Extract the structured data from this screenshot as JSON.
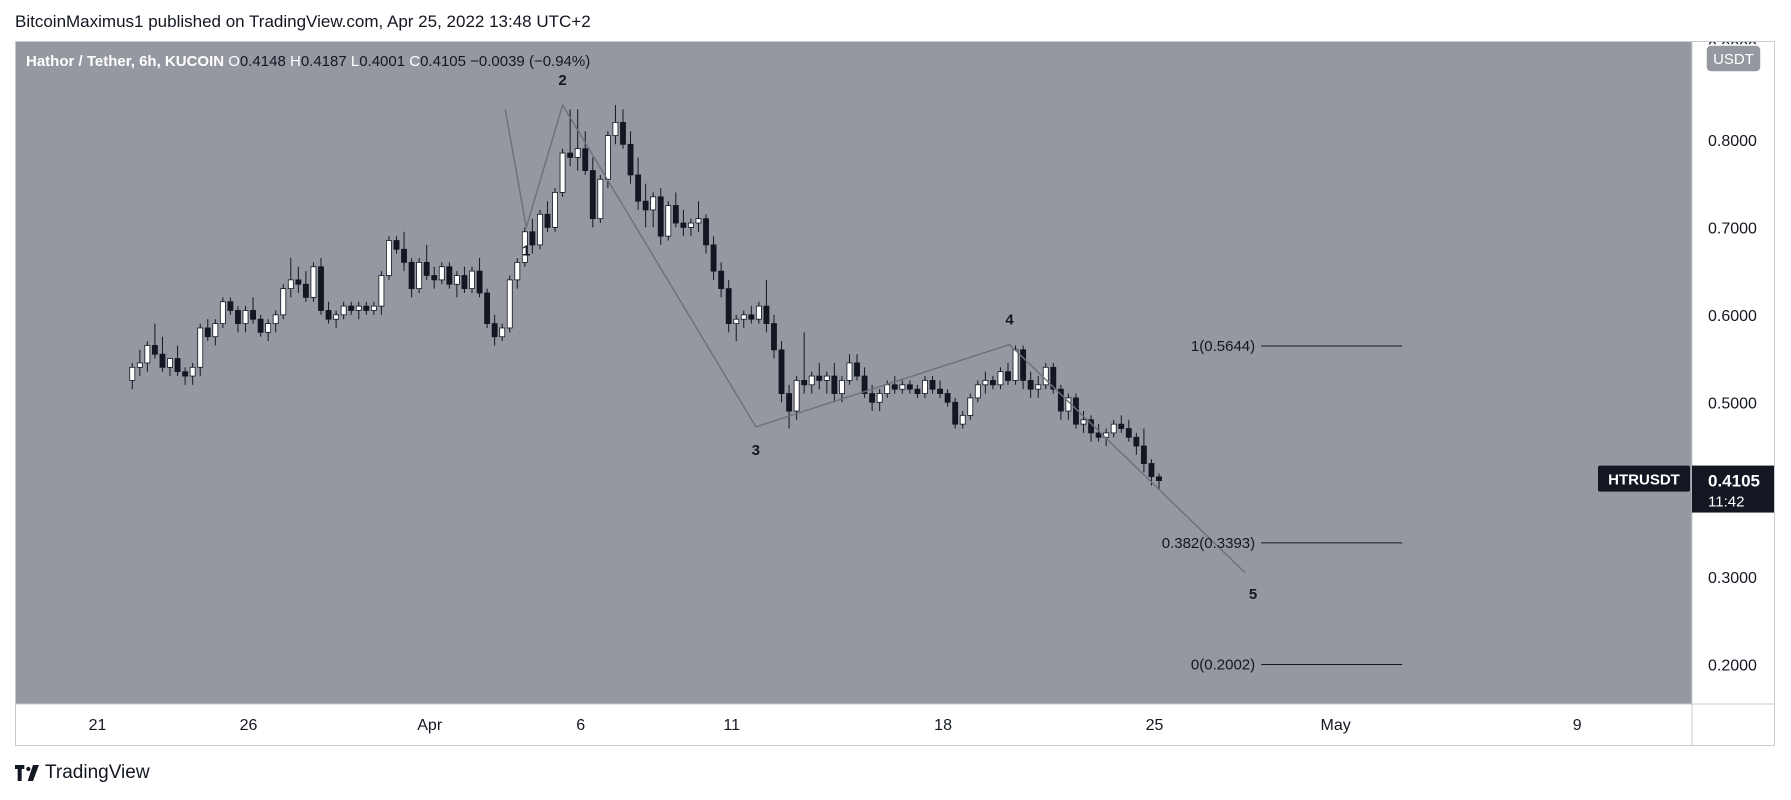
{
  "header": {
    "publisher": "BitcoinMaximus1 published on TradingView.com, Apr 25, 2022 13:48 UTC+2"
  },
  "footer": {
    "brand": "TradingView",
    "logo_icon": "tradingview-logo-icon"
  },
  "colors": {
    "plot_bg": "#9598a1",
    "bull": "#ffffff",
    "bear": "#131722",
    "wick": "#131722",
    "wave_line": "#6d707a",
    "fib_line": "#131722",
    "text": "#131722",
    "label_bg": "#131722",
    "label_text": "#ffffff"
  },
  "chart_data": {
    "type": "candlestick",
    "title": "Hathor / Tether, 6h, KUCOIN",
    "ohlc_summary": [
      {
        "key": "O",
        "value": "0.4148"
      },
      {
        "key": "H",
        "value": "0.4187"
      },
      {
        "key": "L",
        "value": "0.4001"
      },
      {
        "key": "C",
        "value": "0.4105"
      }
    ],
    "change_text": "−0.0039 (−0.94%)",
    "currency_button": "USDT",
    "symbol_label": "HTRUSDT",
    "last_price": "0.4105",
    "countdown": "11:42",
    "x_axis": {
      "range_days": [
        -12.7,
        42.8
      ],
      "ticks": [
        {
          "label": "21",
          "day": -10
        },
        {
          "label": "26",
          "day": -5
        },
        {
          "label": "Apr",
          "day": 1
        },
        {
          "label": "6",
          "day": 6
        },
        {
          "label": "11",
          "day": 11
        },
        {
          "label": "18",
          "day": 18
        },
        {
          "label": "25",
          "day": 25
        },
        {
          "label": "May",
          "day": 31
        },
        {
          "label": "9",
          "day": 39
        }
      ]
    },
    "y_axis": {
      "range": [
        0.155,
        0.912
      ],
      "ticks": [
        "0.8000",
        "0.7000",
        "0.6000",
        "0.5000",
        "0.3000",
        "0.2000"
      ],
      "top_cut_label": "0.9000"
    },
    "candles": [
      [
        0.525,
        0.545,
        0.515,
        0.54
      ],
      [
        0.54,
        0.56,
        0.53,
        0.545
      ],
      [
        0.545,
        0.57,
        0.535,
        0.565
      ],
      [
        0.565,
        0.59,
        0.55,
        0.555
      ],
      [
        0.555,
        0.575,
        0.535,
        0.54
      ],
      [
        0.54,
        0.55,
        0.53,
        0.55
      ],
      [
        0.55,
        0.565,
        0.53,
        0.535
      ],
      [
        0.535,
        0.54,
        0.52,
        0.53
      ],
      [
        0.53,
        0.545,
        0.52,
        0.54
      ],
      [
        0.54,
        0.59,
        0.53,
        0.585
      ],
      [
        0.585,
        0.595,
        0.57,
        0.575
      ],
      [
        0.575,
        0.595,
        0.565,
        0.59
      ],
      [
        0.59,
        0.62,
        0.585,
        0.615
      ],
      [
        0.615,
        0.62,
        0.6,
        0.605
      ],
      [
        0.605,
        0.61,
        0.58,
        0.59
      ],
      [
        0.59,
        0.61,
        0.58,
        0.605
      ],
      [
        0.605,
        0.62,
        0.59,
        0.595
      ],
      [
        0.595,
        0.6,
        0.575,
        0.58
      ],
      [
        0.58,
        0.595,
        0.57,
        0.59
      ],
      [
        0.59,
        0.605,
        0.58,
        0.6
      ],
      [
        0.6,
        0.635,
        0.595,
        0.63
      ],
      [
        0.63,
        0.665,
        0.62,
        0.64
      ],
      [
        0.64,
        0.655,
        0.625,
        0.635
      ],
      [
        0.635,
        0.65,
        0.615,
        0.62
      ],
      [
        0.62,
        0.66,
        0.615,
        0.655
      ],
      [
        0.655,
        0.665,
        0.6,
        0.605
      ],
      [
        0.605,
        0.615,
        0.59,
        0.595
      ],
      [
        0.595,
        0.605,
        0.585,
        0.6
      ],
      [
        0.6,
        0.615,
        0.595,
        0.61
      ],
      [
        0.61,
        0.615,
        0.6,
        0.605
      ],
      [
        0.605,
        0.615,
        0.595,
        0.61
      ],
      [
        0.61,
        0.615,
        0.6,
        0.605
      ],
      [
        0.605,
        0.615,
        0.6,
        0.61
      ],
      [
        0.61,
        0.65,
        0.6,
        0.645
      ],
      [
        0.645,
        0.69,
        0.64,
        0.685
      ],
      [
        0.685,
        0.69,
        0.67,
        0.675
      ],
      [
        0.675,
        0.695,
        0.65,
        0.66
      ],
      [
        0.66,
        0.665,
        0.62,
        0.63
      ],
      [
        0.63,
        0.665,
        0.625,
        0.66
      ],
      [
        0.66,
        0.68,
        0.64,
        0.645
      ],
      [
        0.645,
        0.655,
        0.63,
        0.64
      ],
      [
        0.64,
        0.66,
        0.635,
        0.655
      ],
      [
        0.655,
        0.66,
        0.63,
        0.635
      ],
      [
        0.635,
        0.65,
        0.62,
        0.645
      ],
      [
        0.645,
        0.655,
        0.625,
        0.63
      ],
      [
        0.63,
        0.655,
        0.625,
        0.65
      ],
      [
        0.65,
        0.665,
        0.62,
        0.625
      ],
      [
        0.625,
        0.63,
        0.585,
        0.59
      ],
      [
        0.59,
        0.6,
        0.565,
        0.575
      ],
      [
        0.575,
        0.59,
        0.57,
        0.585
      ],
      [
        0.585,
        0.645,
        0.58,
        0.64
      ],
      [
        0.64,
        0.665,
        0.63,
        0.66
      ],
      [
        0.66,
        0.7,
        0.655,
        0.695
      ],
      [
        0.695,
        0.71,
        0.67,
        0.68
      ],
      [
        0.68,
        0.72,
        0.675,
        0.715
      ],
      [
        0.715,
        0.73,
        0.695,
        0.7
      ],
      [
        0.7,
        0.745,
        0.695,
        0.74
      ],
      [
        0.74,
        0.79,
        0.735,
        0.785
      ],
      [
        0.785,
        0.835,
        0.77,
        0.78
      ],
      [
        0.78,
        0.835,
        0.765,
        0.79
      ],
      [
        0.79,
        0.81,
        0.76,
        0.765
      ],
      [
        0.765,
        0.78,
        0.7,
        0.71
      ],
      [
        0.71,
        0.76,
        0.705,
        0.755
      ],
      [
        0.755,
        0.81,
        0.745,
        0.805
      ],
      [
        0.805,
        0.84,
        0.795,
        0.82
      ],
      [
        0.82,
        0.835,
        0.79,
        0.795
      ],
      [
        0.795,
        0.81,
        0.75,
        0.76
      ],
      [
        0.76,
        0.78,
        0.72,
        0.73
      ],
      [
        0.73,
        0.75,
        0.7,
        0.72
      ],
      [
        0.72,
        0.74,
        0.7,
        0.735
      ],
      [
        0.735,
        0.745,
        0.68,
        0.69
      ],
      [
        0.69,
        0.73,
        0.685,
        0.725
      ],
      [
        0.725,
        0.74,
        0.7,
        0.705
      ],
      [
        0.705,
        0.72,
        0.69,
        0.7
      ],
      [
        0.7,
        0.71,
        0.69,
        0.705
      ],
      [
        0.705,
        0.73,
        0.695,
        0.71
      ],
      [
        0.71,
        0.715,
        0.67,
        0.68
      ],
      [
        0.68,
        0.69,
        0.64,
        0.65
      ],
      [
        0.65,
        0.66,
        0.62,
        0.63
      ],
      [
        0.63,
        0.64,
        0.58,
        0.59
      ],
      [
        0.59,
        0.6,
        0.57,
        0.595
      ],
      [
        0.595,
        0.605,
        0.585,
        0.6
      ],
      [
        0.6,
        0.61,
        0.59,
        0.595
      ],
      [
        0.595,
        0.615,
        0.59,
        0.61
      ],
      [
        0.61,
        0.64,
        0.58,
        0.59
      ],
      [
        0.59,
        0.6,
        0.55,
        0.56
      ],
      [
        0.56,
        0.57,
        0.5,
        0.51
      ],
      [
        0.51,
        0.52,
        0.47,
        0.49
      ],
      [
        0.49,
        0.53,
        0.48,
        0.525
      ],
      [
        0.525,
        0.58,
        0.51,
        0.52
      ],
      [
        0.52,
        0.535,
        0.51,
        0.53
      ],
      [
        0.53,
        0.545,
        0.515,
        0.525
      ],
      [
        0.525,
        0.535,
        0.51,
        0.53
      ],
      [
        0.53,
        0.545,
        0.5,
        0.51
      ],
      [
        0.51,
        0.53,
        0.5,
        0.525
      ],
      [
        0.525,
        0.555,
        0.52,
        0.545
      ],
      [
        0.545,
        0.555,
        0.525,
        0.53
      ],
      [
        0.53,
        0.54,
        0.505,
        0.51
      ],
      [
        0.51,
        0.52,
        0.49,
        0.5
      ],
      [
        0.5,
        0.515,
        0.49,
        0.51
      ],
      [
        0.51,
        0.525,
        0.505,
        0.52
      ],
      [
        0.52,
        0.53,
        0.51,
        0.515
      ],
      [
        0.515,
        0.525,
        0.51,
        0.52
      ],
      [
        0.52,
        0.525,
        0.51,
        0.515
      ],
      [
        0.515,
        0.52,
        0.505,
        0.51
      ],
      [
        0.51,
        0.53,
        0.505,
        0.525
      ],
      [
        0.525,
        0.53,
        0.51,
        0.515
      ],
      [
        0.515,
        0.525,
        0.505,
        0.51
      ],
      [
        0.51,
        0.515,
        0.495,
        0.5
      ],
      [
        0.5,
        0.505,
        0.47,
        0.475
      ],
      [
        0.475,
        0.49,
        0.47,
        0.485
      ],
      [
        0.485,
        0.51,
        0.48,
        0.505
      ],
      [
        0.505,
        0.525,
        0.5,
        0.52
      ],
      [
        0.52,
        0.535,
        0.51,
        0.525
      ],
      [
        0.525,
        0.53,
        0.515,
        0.52
      ],
      [
        0.52,
        0.54,
        0.515,
        0.535
      ],
      [
        0.535,
        0.545,
        0.52,
        0.525
      ],
      [
        0.525,
        0.565,
        0.52,
        0.56
      ],
      [
        0.56,
        0.565,
        0.515,
        0.525
      ],
      [
        0.525,
        0.535,
        0.505,
        0.515
      ],
      [
        0.515,
        0.53,
        0.505,
        0.52
      ],
      [
        0.52,
        0.545,
        0.515,
        0.54
      ],
      [
        0.54,
        0.545,
        0.51,
        0.515
      ],
      [
        0.515,
        0.52,
        0.48,
        0.49
      ],
      [
        0.49,
        0.51,
        0.48,
        0.505
      ],
      [
        0.505,
        0.51,
        0.47,
        0.475
      ],
      [
        0.475,
        0.49,
        0.465,
        0.48
      ],
      [
        0.48,
        0.485,
        0.455,
        0.465
      ],
      [
        0.465,
        0.475,
        0.455,
        0.46
      ],
      [
        0.46,
        0.47,
        0.45,
        0.465
      ],
      [
        0.465,
        0.48,
        0.46,
        0.475
      ],
      [
        0.475,
        0.485,
        0.465,
        0.47
      ],
      [
        0.47,
        0.48,
        0.455,
        0.46
      ],
      [
        0.46,
        0.465,
        0.44,
        0.45
      ],
      [
        0.45,
        0.47,
        0.42,
        0.43
      ],
      [
        0.43,
        0.435,
        0.405,
        0.415
      ],
      [
        0.4148,
        0.4187,
        0.4001,
        0.4105
      ]
    ],
    "elliott_wave": {
      "points": [
        {
          "label": "",
          "day": 3.5,
          "price": 0.835
        },
        {
          "label": "1",
          "day": 4.2,
          "price": 0.7
        },
        {
          "label": "2",
          "day": 5.4,
          "price": 0.84
        },
        {
          "label": "3",
          "day": 11.8,
          "price": 0.472
        },
        {
          "label": "4",
          "day": 20.2,
          "price": 0.566
        },
        {
          "label": "5",
          "day": 28.0,
          "price": 0.305
        }
      ]
    },
    "fib_levels": [
      {
        "label": "1(0.5644)",
        "price": 0.5644
      },
      {
        "label": "0.382(0.3393)",
        "price": 0.3393
      },
      {
        "label": "0(0.2002)",
        "price": 0.2002
      }
    ],
    "fib_day_range": [
      28.4,
      33.2
    ]
  }
}
